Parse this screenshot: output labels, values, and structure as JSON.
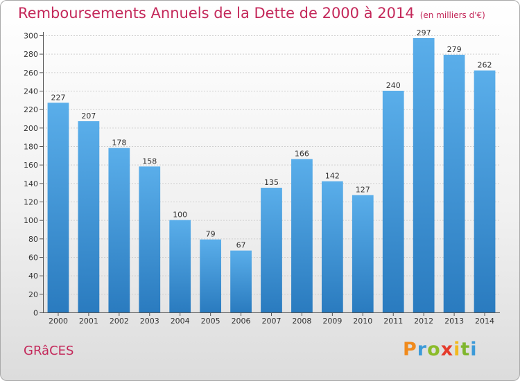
{
  "chart_data": {
    "type": "bar",
    "title": "Remboursements Annuels de la Dette de 2000 à 2014",
    "subtitle": "(en milliers d'€)",
    "categories": [
      "2000",
      "2001",
      "2002",
      "2003",
      "2004",
      "2005",
      "2006",
      "2007",
      "2008",
      "2009",
      "2010",
      "2011",
      "2012",
      "2013",
      "2014"
    ],
    "values": [
      227,
      207,
      178,
      158,
      100,
      79,
      67,
      135,
      166,
      142,
      127,
      240,
      297,
      279,
      262
    ],
    "ylim": [
      0,
      300
    ],
    "yticks": [
      0,
      20,
      40,
      60,
      80,
      100,
      120,
      140,
      160,
      180,
      200,
      220,
      240,
      260,
      280,
      300
    ],
    "grid": true,
    "xlabel": "",
    "ylabel": ""
  },
  "commune": "GRâCES",
  "logo": {
    "letters": [
      "P",
      "r",
      "o",
      "x",
      "i",
      "t",
      "i"
    ]
  },
  "colors": {
    "accent": "#c4285a",
    "bar_top": "#5aaeea",
    "bar_bottom": "#2a7bbf"
  }
}
